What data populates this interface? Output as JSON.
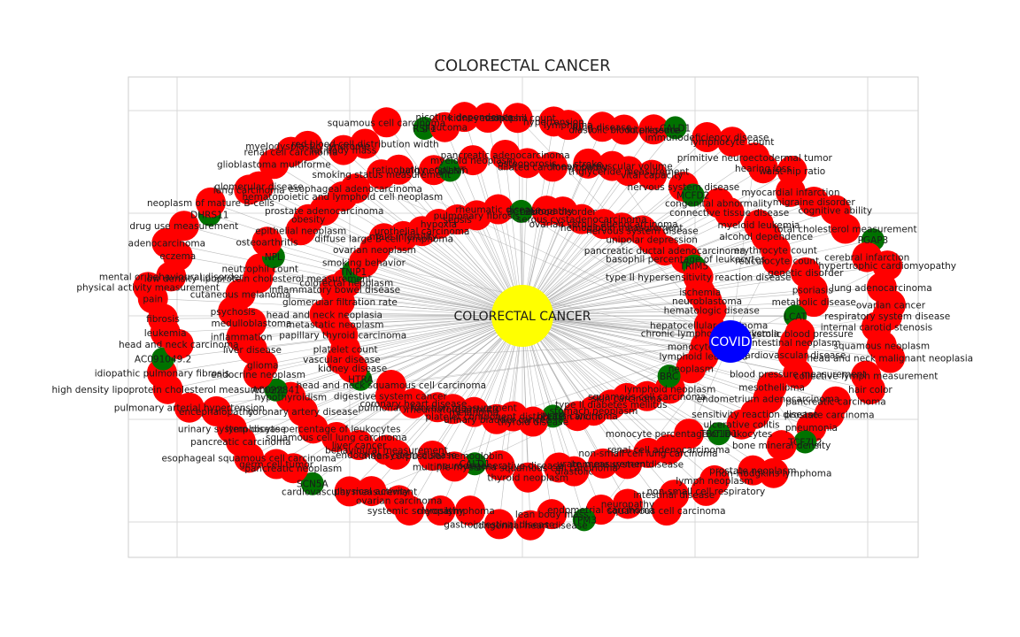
{
  "figure": {
    "title": "COLORECTAL CANCER",
    "colors": {
      "background": "#ffffff",
      "frame": "#cccccc",
      "grid": "#d9d9d9",
      "edge": "#9e9e9e",
      "disease_node": "#ff0000",
      "gene_node": "#007200",
      "hub_node": "#ffff00",
      "query_node": "#0000ff"
    }
  },
  "network": {
    "hub": {
      "label": "COLORECTAL CANCER",
      "color": "#ffff00"
    },
    "query": {
      "label": "COVID",
      "color": "#0000ff"
    },
    "gene_nodes": [
      "TCF7L2",
      "TPM3",
      "SCN5A",
      "AC091049.2",
      "DHRS11",
      "RSF1",
      "CALD1",
      "PGAP3",
      "TBC1D1",
      "CALD1",
      "AC022841",
      "NPL",
      "GALNT",
      "MCFD2",
      "LCAT",
      "PLCE",
      "HTRA",
      "TNIP1",
      "BCL2L",
      "TRIM5",
      "BRC"
    ],
    "disease_nodes": [
      "respiratory system disease",
      "internal carotid stenosis",
      "squamous neoplasm",
      "head and neck malignant neoplasia",
      "collective lymph measurement",
      "hair color",
      "pancreatic carcinoma",
      "prostate carcinoma",
      "pneumonia",
      "bone mineral density",
      "non-Hodgkins lymphoma",
      "prostate neoplasm",
      "lymph neoplasm",
      "non-small cell respiratory",
      "intestinal disease",
      "squamous cell carcinoma",
      "neuropathy",
      "endometrial carcinoma",
      "lean body mass",
      "congenital heart disease",
      "gastrointestinal disease",
      "lymphoma",
      "myopathy",
      "systemic sclerosis",
      "ovarian carcinoma",
      "physical activity",
      "cardiovascular measurement",
      "pancreatic neoplasm",
      "germ cell tumor",
      "esophageal squamous cell carcinoma",
      "pancreatic carcinoma",
      "urinary system disease",
      "encephalopathy",
      "pulmonary arterial hypertension",
      "high density lipoprotein cholesterol measurement",
      "idiopathic pulmonary fibrosis",
      "head and neck carcinoma",
      "leukemia",
      "fibrosis",
      "pain",
      "physical activity measurement",
      "mental or behavioural disorder",
      "eczema",
      "adenocarcinoma",
      "drug use measurement",
      "neoplasm of mature B-cells",
      "lung carcinoma",
      "glomerular disease",
      "glioblastoma multiforme",
      "renal cell carcinoma",
      "myelodysplastic syndrome",
      "fat body mass",
      "red blood cell distribution width",
      "squamous cell carcinoma",
      "glaucoma",
      "nicotine dependence",
      "kidney neoplasm",
      "eosinophil count",
      "hypertension",
      "lymphoma",
      "lung disease",
      "diastolic blood pressure",
      "intelligence",
      "immunodeficiency disease",
      "lymphocyte count",
      "primitive neuroectodermal tumor",
      "hearing loss",
      "waist-hip ratio",
      "myocardial infarction",
      "migraine disorder",
      "cognitive ability",
      "total cholesterol measurement",
      "cerebral infarction",
      "hypertrophic cardiomyopathy",
      "lung adenocarcinoma",
      "ovarian cancer",
      "blood pressure measurement",
      "mesothelioma",
      "endometrium adenocarcinoma",
      "sensitivity reaction disease",
      "ulcerative colitis",
      "monocyte percentage of leukocytes",
      "renal cell adenocarcinoma",
      "non-small cell lung carcinoma",
      "immune system disease",
      "urate measurement",
      "diastolic",
      "squamous cell carcinoma",
      "thyroid neoplasm",
      "neurodegenerative disease",
      "multiple myeloma",
      "mean corpuscular hemoglobin",
      "endocrine system disease",
      "behavioural measurement",
      "liver cancer",
      "squamous cell lung carcinoma",
      "lymphocyte percentage of leukocytes",
      "coronary artery disease",
      "hypothyroidism",
      "endocrine neoplasm",
      "glioma",
      "liver disease",
      "inflammation",
      "medulloblastoma",
      "psychosis",
      "cutaneous melanoma",
      "low density lipoprotein cholesterol measurement",
      "neutrophil count",
      "osteoarthritis",
      "epithelial neoplasm",
      "obesity",
      "prostate adenocarcinoma",
      "hematopoietic and lymphoid cell neoplasm",
      "esophageal adenocarcinoma",
      "smoking status measurement",
      "retinopathy",
      "lung neoplasm",
      "myeloid neoplasm",
      "pancreatic adenocarcinoma",
      "osteoporosis",
      "dilated cardiomyopathy",
      "stroke",
      "mean corpuscular volume",
      "triglyceride measurement",
      "vital capacity",
      "nervous system disease",
      "congenital abnormality",
      "connective tissue disease",
      "myeloid leukemia",
      "alcohol dependence",
      "erythrocyte count",
      "reticulocyte count",
      "genetic disorder",
      "psoriasis",
      "metabolic disease",
      "systolic blood pressure",
      "intestinal neoplasm",
      "cardiovascular disease",
      "lymphoid neoplasm",
      "squamous cell carcinoma",
      "skin carcinoma",
      "type II diabetes mellitus",
      "stomach neoplasm",
      "breast carcinoma",
      "thyroid disease",
      "platelet component distribution width",
      "urinary bladder cancer",
      "melanoma",
      "rheumatoid arthritis",
      "pulmonary function measurement",
      "coronary heart disease",
      "digestive system cancer",
      "head and neck squamous cell carcinoma",
      "kidney disease",
      "vascular disease",
      "platelet count",
      "papillary thyroid carcinoma",
      "metastatic neoplasm",
      "head and neck neoplasia",
      "glomerular filtration rate",
      "inflammatory bowel disease",
      "colorectal neoplasm",
      "smoking behavior",
      "ovarian neoplasm",
      "diffuse large B-cell lymphoma",
      "male infertility",
      "urothelial carcinoma",
      "hypoxia",
      "sepsis",
      "pulmonary fibrosis",
      "rheumatic disease",
      "neuropathy",
      "mood disorder",
      "serous cystadenocarcinoma",
      "ovarian serous adenocarcinoma",
      "hemoglobin measurement",
      "nervous system disease",
      "unipolar depression",
      "pancreatic ductal adenocarcinoma",
      "basophil percentage of leukocytes",
      "type II hypersensitivity reaction disease",
      "ischemia",
      "neuroblastoma",
      "hematologic disease",
      "hepatocellular carcinoma",
      "chronic lymphocytic leukemia",
      "monocyte count",
      "lymphoid leukemia",
      "neoplasm"
    ]
  }
}
